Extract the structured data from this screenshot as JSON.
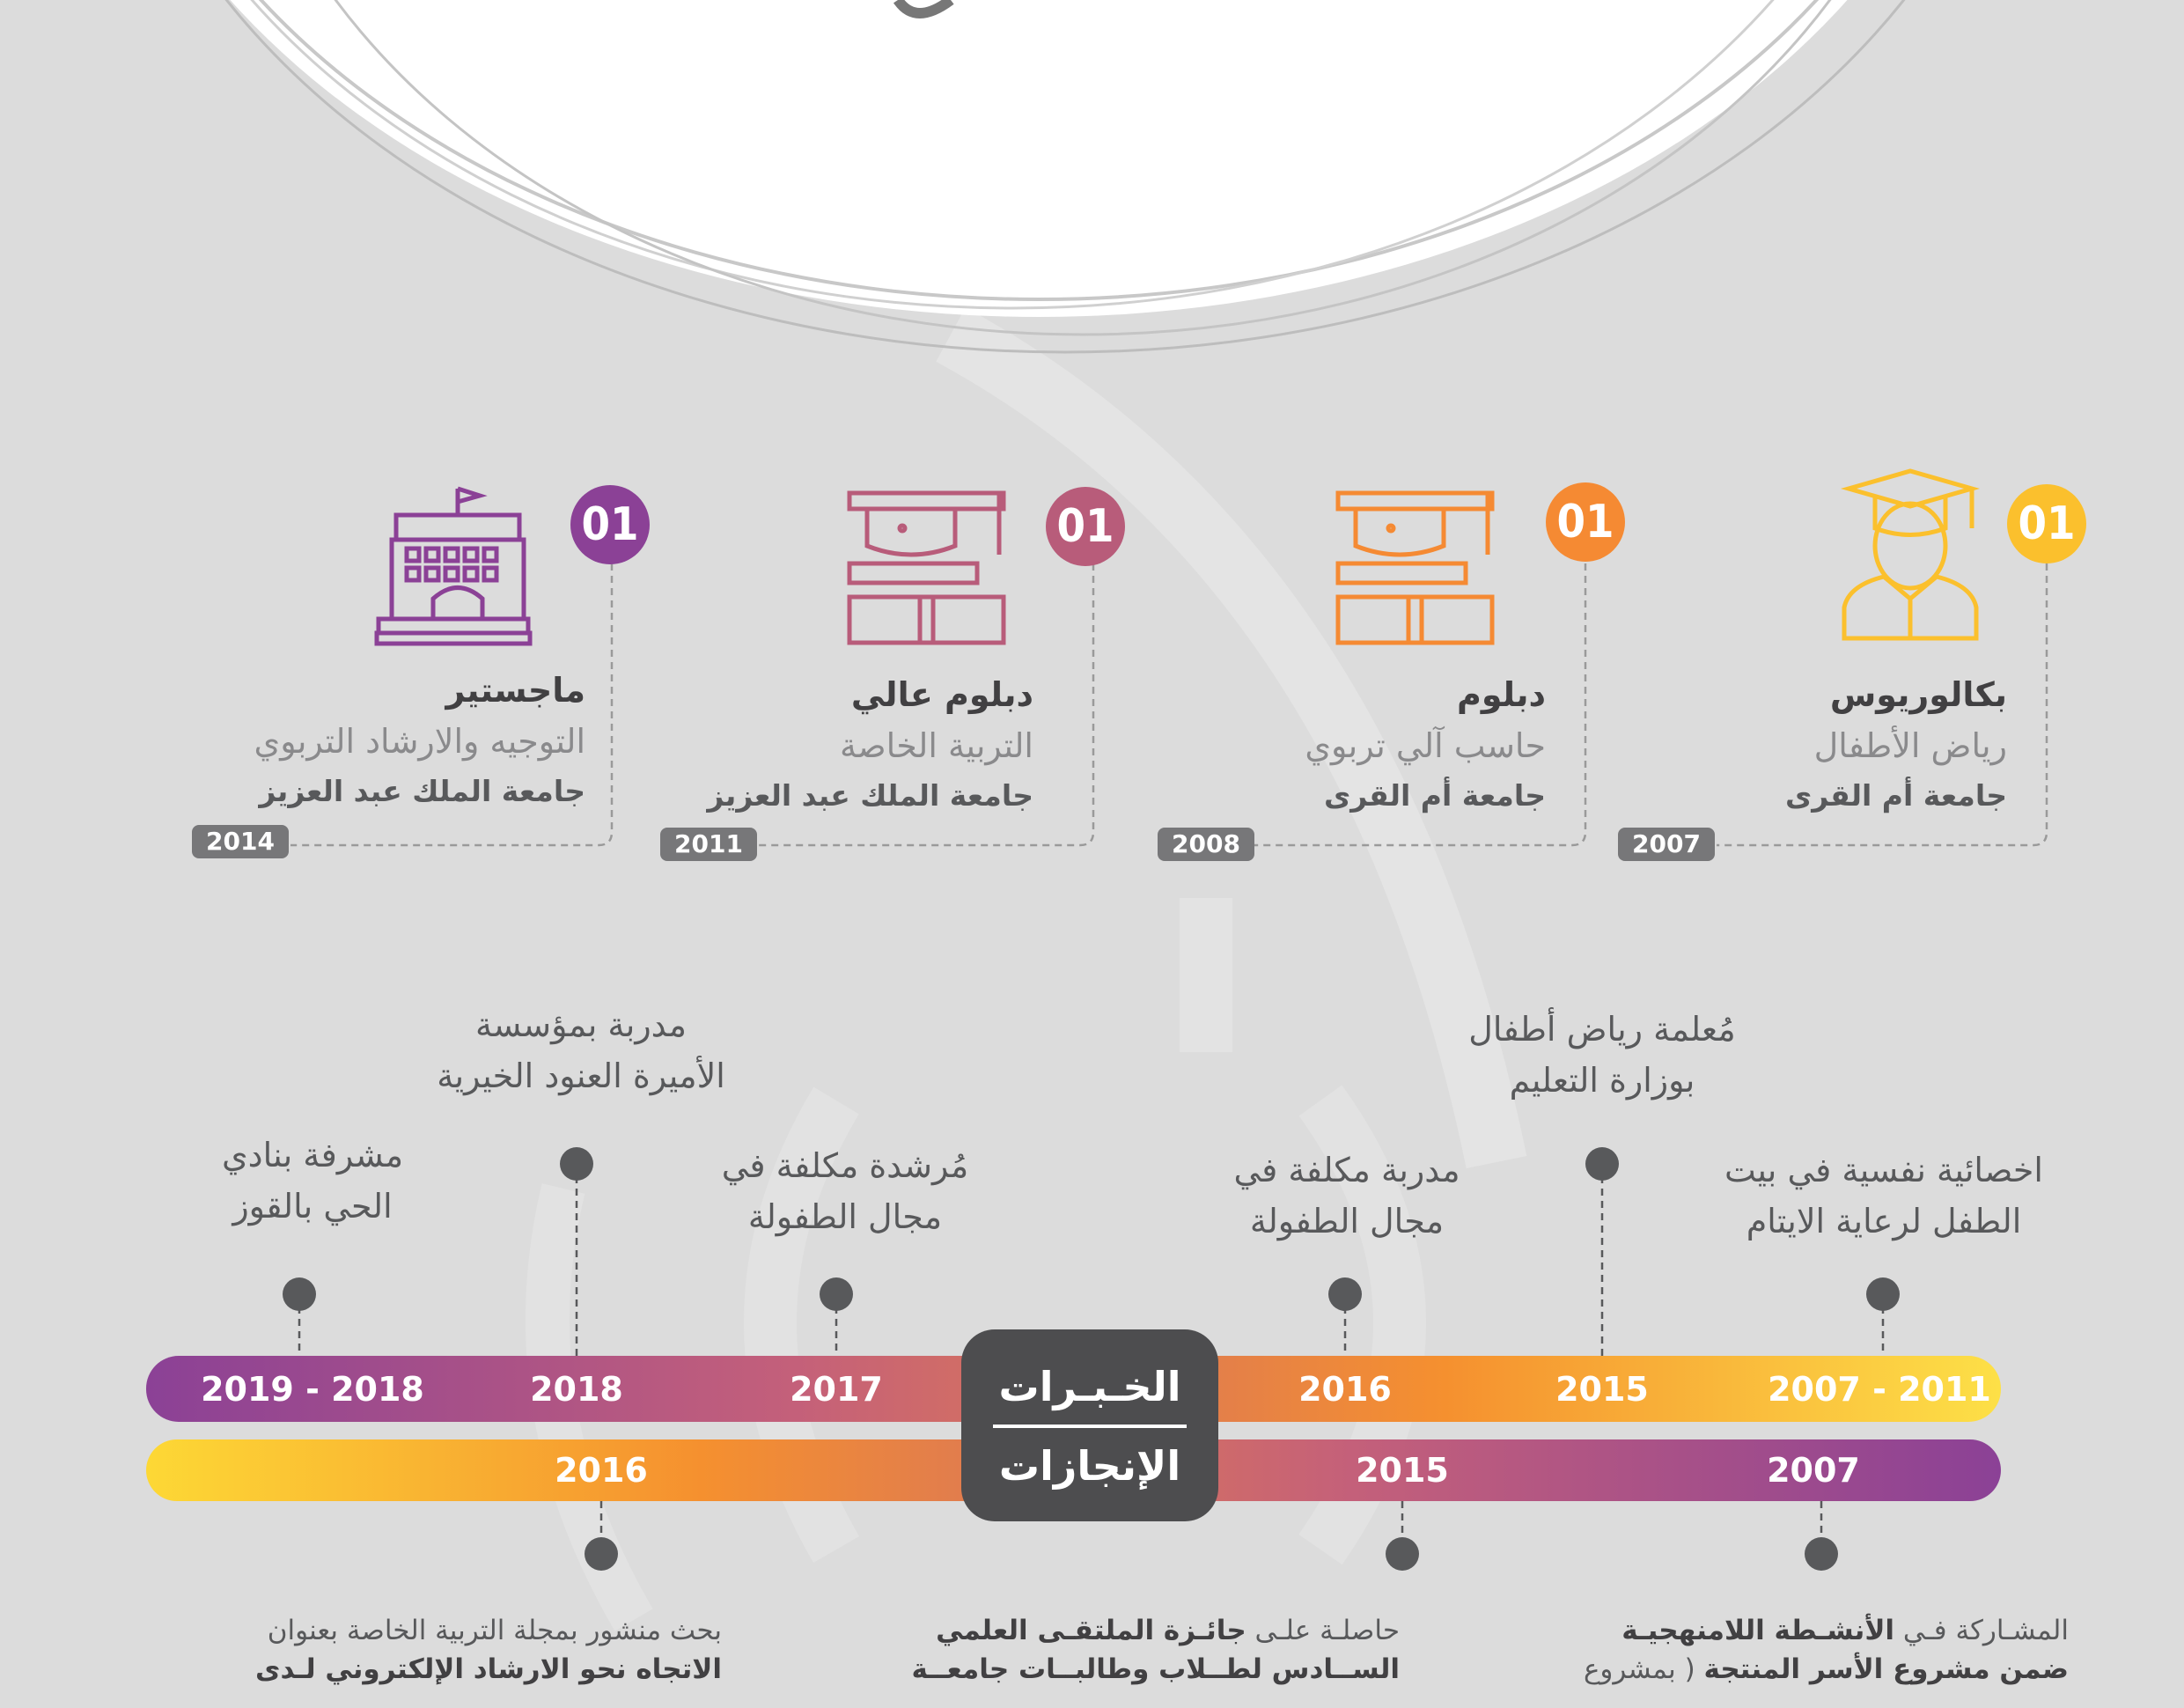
{
  "colors": {
    "background": "#dcdcdc",
    "yellow": "#fbc02d",
    "orange": "#f58a33",
    "rose": "#b85c7a",
    "purple": "#8b4196",
    "dark": "#4d4d4f",
    "pill": "#777779"
  },
  "education": [
    {
      "badge": "01",
      "title": "بكالوريوس",
      "field": "رياض الأطفال",
      "university": "جامعة أم القرى",
      "year": "2007",
      "icon": "graduate-icon",
      "color": "#fbc02d"
    },
    {
      "badge": "01",
      "title": "دبلوم",
      "field": "حاسب آلي تربوي",
      "university": "جامعة أم القرى",
      "year": "2008",
      "icon": "books-cap-icon",
      "color": "#f58a33"
    },
    {
      "badge": "01",
      "title": "دبلوم عالي",
      "field": "التربية الخاصة",
      "university": "جامعة الملك عبد العزيز",
      "year": "2011",
      "icon": "books-cap-icon",
      "color": "#b85c7a"
    },
    {
      "badge": "01",
      "title": "ماجستير",
      "field": "التوجيه والارشاد التربوي",
      "university": "جامعة الملك عبد العزيز",
      "year": "2014",
      "icon": "university-building-icon",
      "color": "#8b4196"
    }
  ],
  "center": {
    "experience": "الخـبـرات",
    "achievements": "الإنجازات"
  },
  "experience_years": [
    "2007 - 2011",
    "2015",
    "2016",
    "2017",
    "2018",
    "2019 - 2018"
  ],
  "jobs": [
    {
      "line1": "اخصائية نفسية في بيت",
      "line2": "الطفل لرعاية الايتام"
    },
    {
      "line1": "مُعلمة رياض أطفال",
      "line2": "بوزارة التعليم"
    },
    {
      "line1": "مدربة مكلفة في",
      "line2": "مجال الطفولة"
    },
    {
      "line1": "مُرشدة مكلفة في",
      "line2": "مجال الطفولة"
    },
    {
      "line1": "مدربة  بمؤسسة",
      "line2": "الأميرة العنود الخيرية"
    },
    {
      "line1": "مشرفة بنادي",
      "line2": "الحي بالقوز"
    }
  ],
  "achievement_years": [
    "2007",
    "2015",
    "2016"
  ],
  "achievements": [
    {
      "line1_a": "المشـاركة  فـي ",
      "line1_b": "الأنشـطة اللامنهجيـة",
      "line2_a": "ضمن مشروع الأسر المنتجة",
      "line2_b": " ( بمشروع"
    },
    {
      "line1_a": "حاصلـة علـى ",
      "line1_b": "جائـزة الملتقـى العلمي",
      "line2_a": "الســادس لطــلاب وطالبــات جامعــة",
      "line2_b": ""
    },
    {
      "line1_a": "بحث منشور بمجلة التربية الخاصة بعنوان",
      "line1_b": "",
      "line2_a": "الاتجاه نحو الارشاد الإلكتروني لـدى",
      "line2_b": ""
    }
  ]
}
